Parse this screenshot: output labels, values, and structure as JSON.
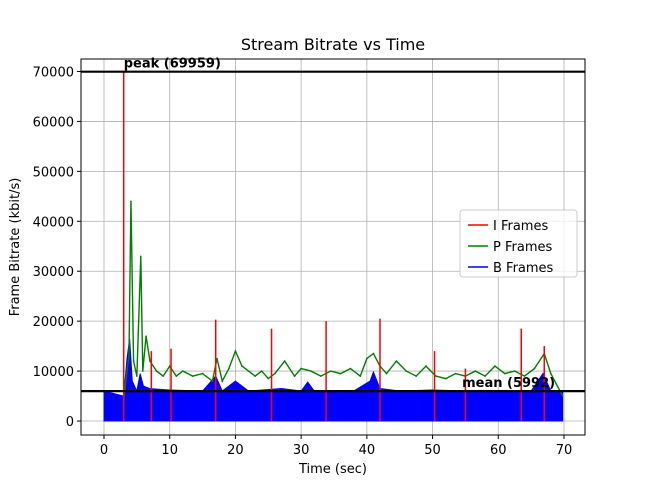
{
  "chart_data": {
    "type": "line",
    "title": "Stream Bitrate vs Time",
    "xlabel": "Time (sec)",
    "ylabel": "Frame Bitrate (kbit/s)",
    "xlim": [
      -3.5,
      73.2
    ],
    "ylim": [
      -2800,
      72500
    ],
    "xticks": [
      0,
      10,
      20,
      30,
      40,
      50,
      60,
      70
    ],
    "yticks": [
      0,
      10000,
      20000,
      30000,
      40000,
      50000,
      60000,
      70000
    ],
    "grid": true,
    "legend_position": "center-right",
    "reference_lines": [
      {
        "name": "peak",
        "label": "peak (69959)",
        "value": 69959
      },
      {
        "name": "mean",
        "label": "mean (5992)",
        "value": 5992
      }
    ],
    "series": [
      {
        "name": "I Frames",
        "color": "#ff0000",
        "style": "spikes",
        "points": [
          [
            3.0,
            69959
          ],
          [
            7.2,
            14000
          ],
          [
            10.2,
            14500
          ],
          [
            17.0,
            20300
          ],
          [
            25.5,
            18500
          ],
          [
            33.8,
            20000
          ],
          [
            42.0,
            20500
          ],
          [
            50.3,
            14000
          ],
          [
            55.0,
            10500
          ],
          [
            63.5,
            18500
          ],
          [
            67.0,
            15000
          ]
        ]
      },
      {
        "name": "P Frames",
        "color": "#008000",
        "style": "line",
        "points": [
          [
            3.0,
            4000
          ],
          [
            3.4,
            9000
          ],
          [
            3.8,
            13000
          ],
          [
            4.1,
            44000
          ],
          [
            4.5,
            12000
          ],
          [
            5.0,
            9000
          ],
          [
            5.6,
            33000
          ],
          [
            5.9,
            10000
          ],
          [
            6.4,
            17000
          ],
          [
            7.0,
            12000
          ],
          [
            8.0,
            10000
          ],
          [
            9.0,
            9000
          ],
          [
            10.0,
            11000
          ],
          [
            11.0,
            9000
          ],
          [
            12.0,
            10000
          ],
          [
            13.5,
            9000
          ],
          [
            15.0,
            9500
          ],
          [
            16.5,
            8000
          ],
          [
            17.2,
            12500
          ],
          [
            18.0,
            8000
          ],
          [
            19.0,
            10500
          ],
          [
            20.0,
            14000
          ],
          [
            21.0,
            11000
          ],
          [
            22.0,
            10000
          ],
          [
            23.0,
            9000
          ],
          [
            24.0,
            10000
          ],
          [
            25.0,
            8500
          ],
          [
            26.0,
            9500
          ],
          [
            27.5,
            12000
          ],
          [
            29.0,
            9000
          ],
          [
            30.0,
            10500
          ],
          [
            31.5,
            10000
          ],
          [
            33.0,
            9000
          ],
          [
            34.5,
            10000
          ],
          [
            36.0,
            9500
          ],
          [
            37.5,
            10500
          ],
          [
            39.0,
            9000
          ],
          [
            40.0,
            12500
          ],
          [
            41.0,
            13500
          ],
          [
            42.0,
            11000
          ],
          [
            43.0,
            9500
          ],
          [
            44.5,
            12000
          ],
          [
            46.0,
            10000
          ],
          [
            47.5,
            9000
          ],
          [
            49.0,
            11000
          ],
          [
            50.5,
            9000
          ],
          [
            52.0,
            8500
          ],
          [
            53.5,
            9500
          ],
          [
            55.0,
            9000
          ],
          [
            56.5,
            10000
          ],
          [
            58.0,
            9000
          ],
          [
            59.5,
            11000
          ],
          [
            61.0,
            9500
          ],
          [
            62.5,
            10000
          ],
          [
            64.0,
            9000
          ],
          [
            65.5,
            10500
          ],
          [
            67.0,
            13500
          ],
          [
            68.0,
            9500
          ],
          [
            69.0,
            7000
          ],
          [
            69.8,
            5000
          ]
        ]
      },
      {
        "name": "B Frames",
        "color": "#0000ff",
        "style": "area",
        "points": [
          [
            0.0,
            6000
          ],
          [
            3.0,
            5000
          ],
          [
            3.5,
            12500
          ],
          [
            3.9,
            16500
          ],
          [
            4.3,
            8000
          ],
          [
            5.0,
            6000
          ],
          [
            5.5,
            9500
          ],
          [
            6.0,
            7000
          ],
          [
            7.0,
            6500
          ],
          [
            10.0,
            6200
          ],
          [
            15.0,
            6000
          ],
          [
            17.0,
            9000
          ],
          [
            18.0,
            6000
          ],
          [
            20.0,
            8000
          ],
          [
            22.0,
            6000
          ],
          [
            27.0,
            6500
          ],
          [
            30.0,
            6000
          ],
          [
            31.0,
            7800
          ],
          [
            32.0,
            6000
          ],
          [
            38.0,
            6000
          ],
          [
            40.5,
            8000
          ],
          [
            41.0,
            9800
          ],
          [
            42.0,
            6500
          ],
          [
            45.0,
            6000
          ],
          [
            50.0,
            6200
          ],
          [
            55.0,
            6000
          ],
          [
            60.0,
            6000
          ],
          [
            65.0,
            6000
          ],
          [
            66.8,
            9500
          ],
          [
            68.0,
            6000
          ],
          [
            69.8,
            6000
          ]
        ]
      }
    ]
  }
}
